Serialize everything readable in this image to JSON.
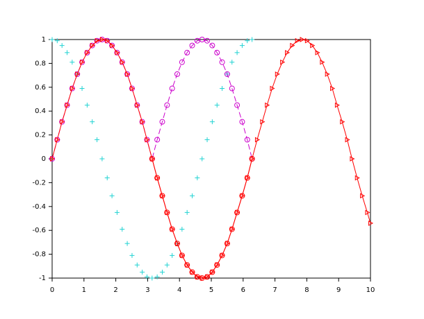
{
  "chart_data": {
    "type": "line",
    "x": [
      0,
      0.16,
      0.31,
      0.47,
      0.63,
      0.79,
      0.94,
      1.1,
      1.26,
      1.41,
      1.57,
      1.73,
      1.88,
      2.04,
      2.2,
      2.36,
      2.51,
      2.67,
      2.83,
      2.98,
      3.14,
      3.3,
      3.46,
      3.61,
      3.77,
      3.93,
      4.08,
      4.24,
      4.4,
      4.56,
      4.71,
      4.87,
      5.03,
      5.18,
      5.34,
      5.5,
      5.65,
      5.81,
      5.97,
      6.13,
      6.28,
      6.44,
      6.6,
      6.75,
      6.91,
      7.07,
      7.23,
      7.38,
      7.54,
      7.7,
      7.85,
      8.01,
      8.17,
      8.33,
      8.48,
      8.64,
      8.8,
      8.95,
      9.11,
      9.27,
      9.42,
      9.58,
      9.74,
      9.9,
      10
    ],
    "series": [
      {
        "color": "#22d3d3",
        "line_style": "none",
        "marker": "plus",
        "values": [
          1,
          0.99,
          0.95,
          0.89,
          0.81,
          0.71,
          0.59,
          0.45,
          0.31,
          0.16,
          0,
          -0.16,
          -0.31,
          -0.45,
          -0.59,
          -0.71,
          -0.81,
          -0.89,
          -0.95,
          -0.99,
          -1,
          -0.99,
          -0.95,
          -0.89,
          -0.81,
          -0.71,
          -0.59,
          -0.45,
          -0.31,
          -0.16,
          0,
          0.16,
          0.31,
          0.45,
          0.59,
          0.71,
          0.81,
          0.89,
          0.95,
          0.99,
          1,
          null,
          null,
          null,
          null,
          null,
          null,
          null,
          null,
          null,
          null,
          null,
          null,
          null,
          null,
          null,
          null,
          null,
          null,
          null,
          null,
          null,
          null,
          null,
          null
        ]
      },
      {
        "color": "#cc00cc",
        "line_style": "dashed",
        "marker": "circle",
        "values": [
          0,
          0.16,
          0.31,
          0.45,
          0.59,
          0.71,
          0.81,
          0.89,
          0.95,
          0.99,
          1,
          0.99,
          0.95,
          0.89,
          0.81,
          0.71,
          0.59,
          0.45,
          0.31,
          0.16,
          0,
          0.16,
          0.31,
          0.45,
          0.59,
          0.71,
          0.81,
          0.89,
          0.95,
          0.99,
          1,
          0.99,
          0.95,
          0.89,
          0.81,
          0.71,
          0.59,
          0.45,
          0.31,
          0.16,
          0,
          null,
          null,
          null,
          null,
          null,
          null,
          null,
          null,
          null,
          null,
          null,
          null,
          null,
          null,
          null,
          null,
          null,
          null,
          null,
          null,
          null,
          null,
          null,
          null
        ]
      },
      {
        "color": "#ff0000",
        "line_style": "solid",
        "marker": "triangle",
        "values": [
          0,
          0.16,
          0.31,
          0.45,
          0.59,
          0.71,
          0.81,
          0.89,
          0.95,
          0.99,
          1,
          0.99,
          0.95,
          0.89,
          0.81,
          0.71,
          0.59,
          0.45,
          0.31,
          0.16,
          0,
          -0.16,
          -0.31,
          -0.45,
          -0.59,
          -0.71,
          -0.81,
          -0.89,
          -0.95,
          -0.99,
          -1,
          -0.99,
          -0.95,
          -0.89,
          -0.81,
          -0.71,
          -0.59,
          -0.45,
          -0.31,
          -0.16,
          0,
          0.16,
          0.31,
          0.45,
          0.59,
          0.71,
          0.81,
          0.89,
          0.95,
          0.99,
          1,
          0.99,
          0.95,
          0.89,
          0.81,
          0.71,
          0.59,
          0.45,
          0.31,
          0.16,
          0,
          -0.16,
          -0.31,
          -0.45,
          -0.54
        ]
      },
      {
        "color": "#ff0000",
        "line_style": "solid",
        "marker": "circle",
        "values": [
          null,
          null,
          null,
          null,
          null,
          null,
          null,
          null,
          null,
          null,
          null,
          null,
          null,
          null,
          null,
          null,
          null,
          null,
          null,
          null,
          0,
          -0.16,
          -0.31,
          -0.45,
          -0.59,
          -0.71,
          -0.81,
          -0.89,
          -0.95,
          -0.99,
          -1,
          -0.99,
          -0.95,
          -0.89,
          -0.81,
          -0.71,
          -0.59,
          -0.45,
          -0.31,
          -0.16,
          0,
          null,
          null,
          null,
          null,
          null,
          null,
          null,
          null,
          null,
          null,
          null,
          null,
          null,
          null,
          null,
          null,
          null,
          null,
          null,
          null,
          null,
          null,
          null,
          null
        ]
      }
    ],
    "xlim": [
      0,
      10
    ],
    "ylim": [
      -1,
      1
    ],
    "xticks": [
      0,
      1,
      2,
      3,
      4,
      5,
      6,
      7,
      8,
      9,
      10
    ],
    "yticks": [
      -1,
      -0.8,
      -0.6,
      -0.4,
      -0.2,
      0,
      0.2,
      0.4,
      0.6,
      0.8,
      1
    ],
    "grid": false
  }
}
